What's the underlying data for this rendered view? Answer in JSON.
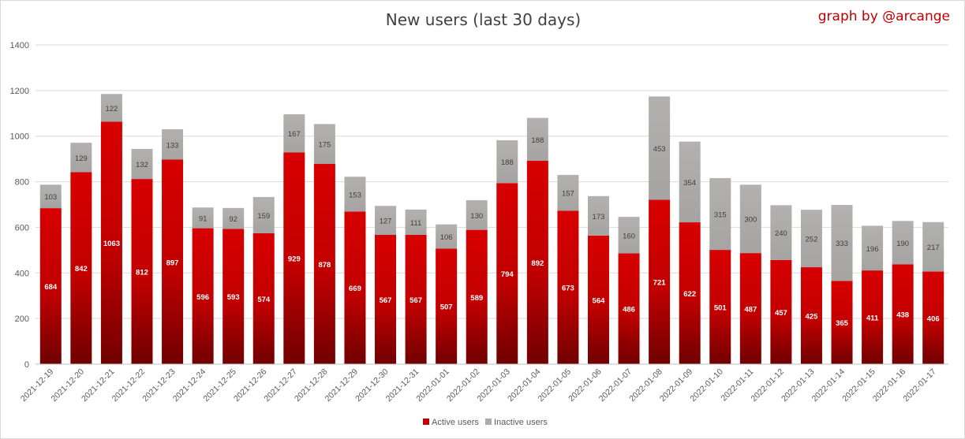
{
  "chart_data": {
    "type": "bar",
    "stacked": true,
    "title": "New users (last 30 days)",
    "credit": "graph by @arcange",
    "categories": [
      "2021-12-19",
      "2021-12-20",
      "2021-12-21",
      "2021-12-22",
      "2021-12-23",
      "2021-12-24",
      "2021-12-25",
      "2021-12-26",
      "2021-12-27",
      "2021-12-28",
      "2021-12-29",
      "2021-12-30",
      "2021-12-31",
      "2022-01-01",
      "2022-01-02",
      "2022-01-03",
      "2022-01-04",
      "2022-01-05",
      "2022-01-06",
      "2022-01-07",
      "2022-01-08",
      "2022-01-09",
      "2022-01-10",
      "2022-01-11",
      "2022-01-12",
      "2022-01-13",
      "2022-01-14",
      "2022-01-15",
      "2022-01-16",
      "2022-01-17"
    ],
    "series": [
      {
        "name": "Active users",
        "color": "#c00000",
        "values": [
          684,
          842,
          1063,
          812,
          897,
          596,
          593,
          574,
          929,
          878,
          669,
          567,
          567,
          507,
          589,
          794,
          892,
          673,
          564,
          486,
          721,
          622,
          501,
          487,
          457,
          425,
          365,
          411,
          438,
          406
        ]
      },
      {
        "name": "Inactive users",
        "color": "#aeaaaa",
        "values": [
          103,
          129,
          122,
          132,
          133,
          91,
          92,
          159,
          167,
          175,
          153,
          127,
          111,
          106,
          130,
          188,
          188,
          157,
          173,
          160,
          453,
          354,
          315,
          300,
          240,
          252,
          333,
          196,
          190,
          217
        ]
      }
    ],
    "ylim": [
      0,
      1400
    ],
    "yticks": [
      0,
      200,
      400,
      600,
      800,
      1000,
      1200,
      1400
    ],
    "grid": true,
    "legend": "bottom"
  }
}
